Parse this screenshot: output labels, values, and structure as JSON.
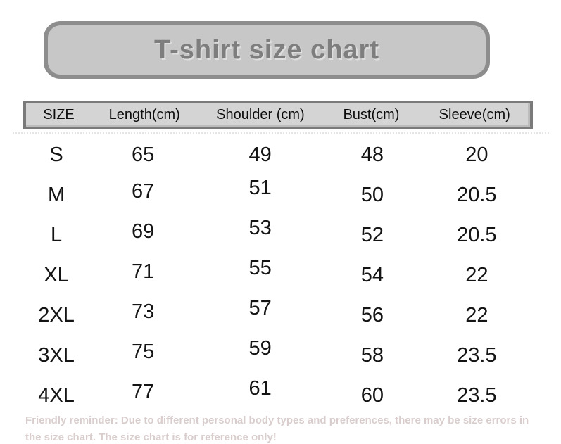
{
  "title": {
    "text": "T-shirt size chart",
    "box_fill": "#c7c7c7",
    "box_border": "#8d8d8d",
    "text_color": "#7e7e7e"
  },
  "table": {
    "header_fill": "#d4d4d4",
    "header_border": "#7a7a7a",
    "text_color": "#141414"
  },
  "footer": {
    "text": "Friendly reminder: Due to different personal body types and preferences, there may be size errors in the size chart. The size chart is for reference only!",
    "color": "#d9cdcd"
  },
  "chart_data": {
    "type": "table",
    "title": "T-shirt size chart",
    "columns": [
      "SIZE",
      "Length(cm)",
      "Shoulder (cm)",
      "Bust(cm)",
      "Sleeve(cm)"
    ],
    "rows": [
      [
        "S",
        65,
        49,
        48,
        20
      ],
      [
        "M",
        67,
        51,
        50,
        20.5
      ],
      [
        "L",
        69,
        53,
        52,
        20.5
      ],
      [
        "XL",
        71,
        55,
        54,
        22
      ],
      [
        "2XL",
        73,
        57,
        56,
        22
      ],
      [
        "3XL",
        75,
        59,
        58,
        23.5
      ],
      [
        "4XL",
        77,
        61,
        60,
        23.5
      ]
    ]
  }
}
